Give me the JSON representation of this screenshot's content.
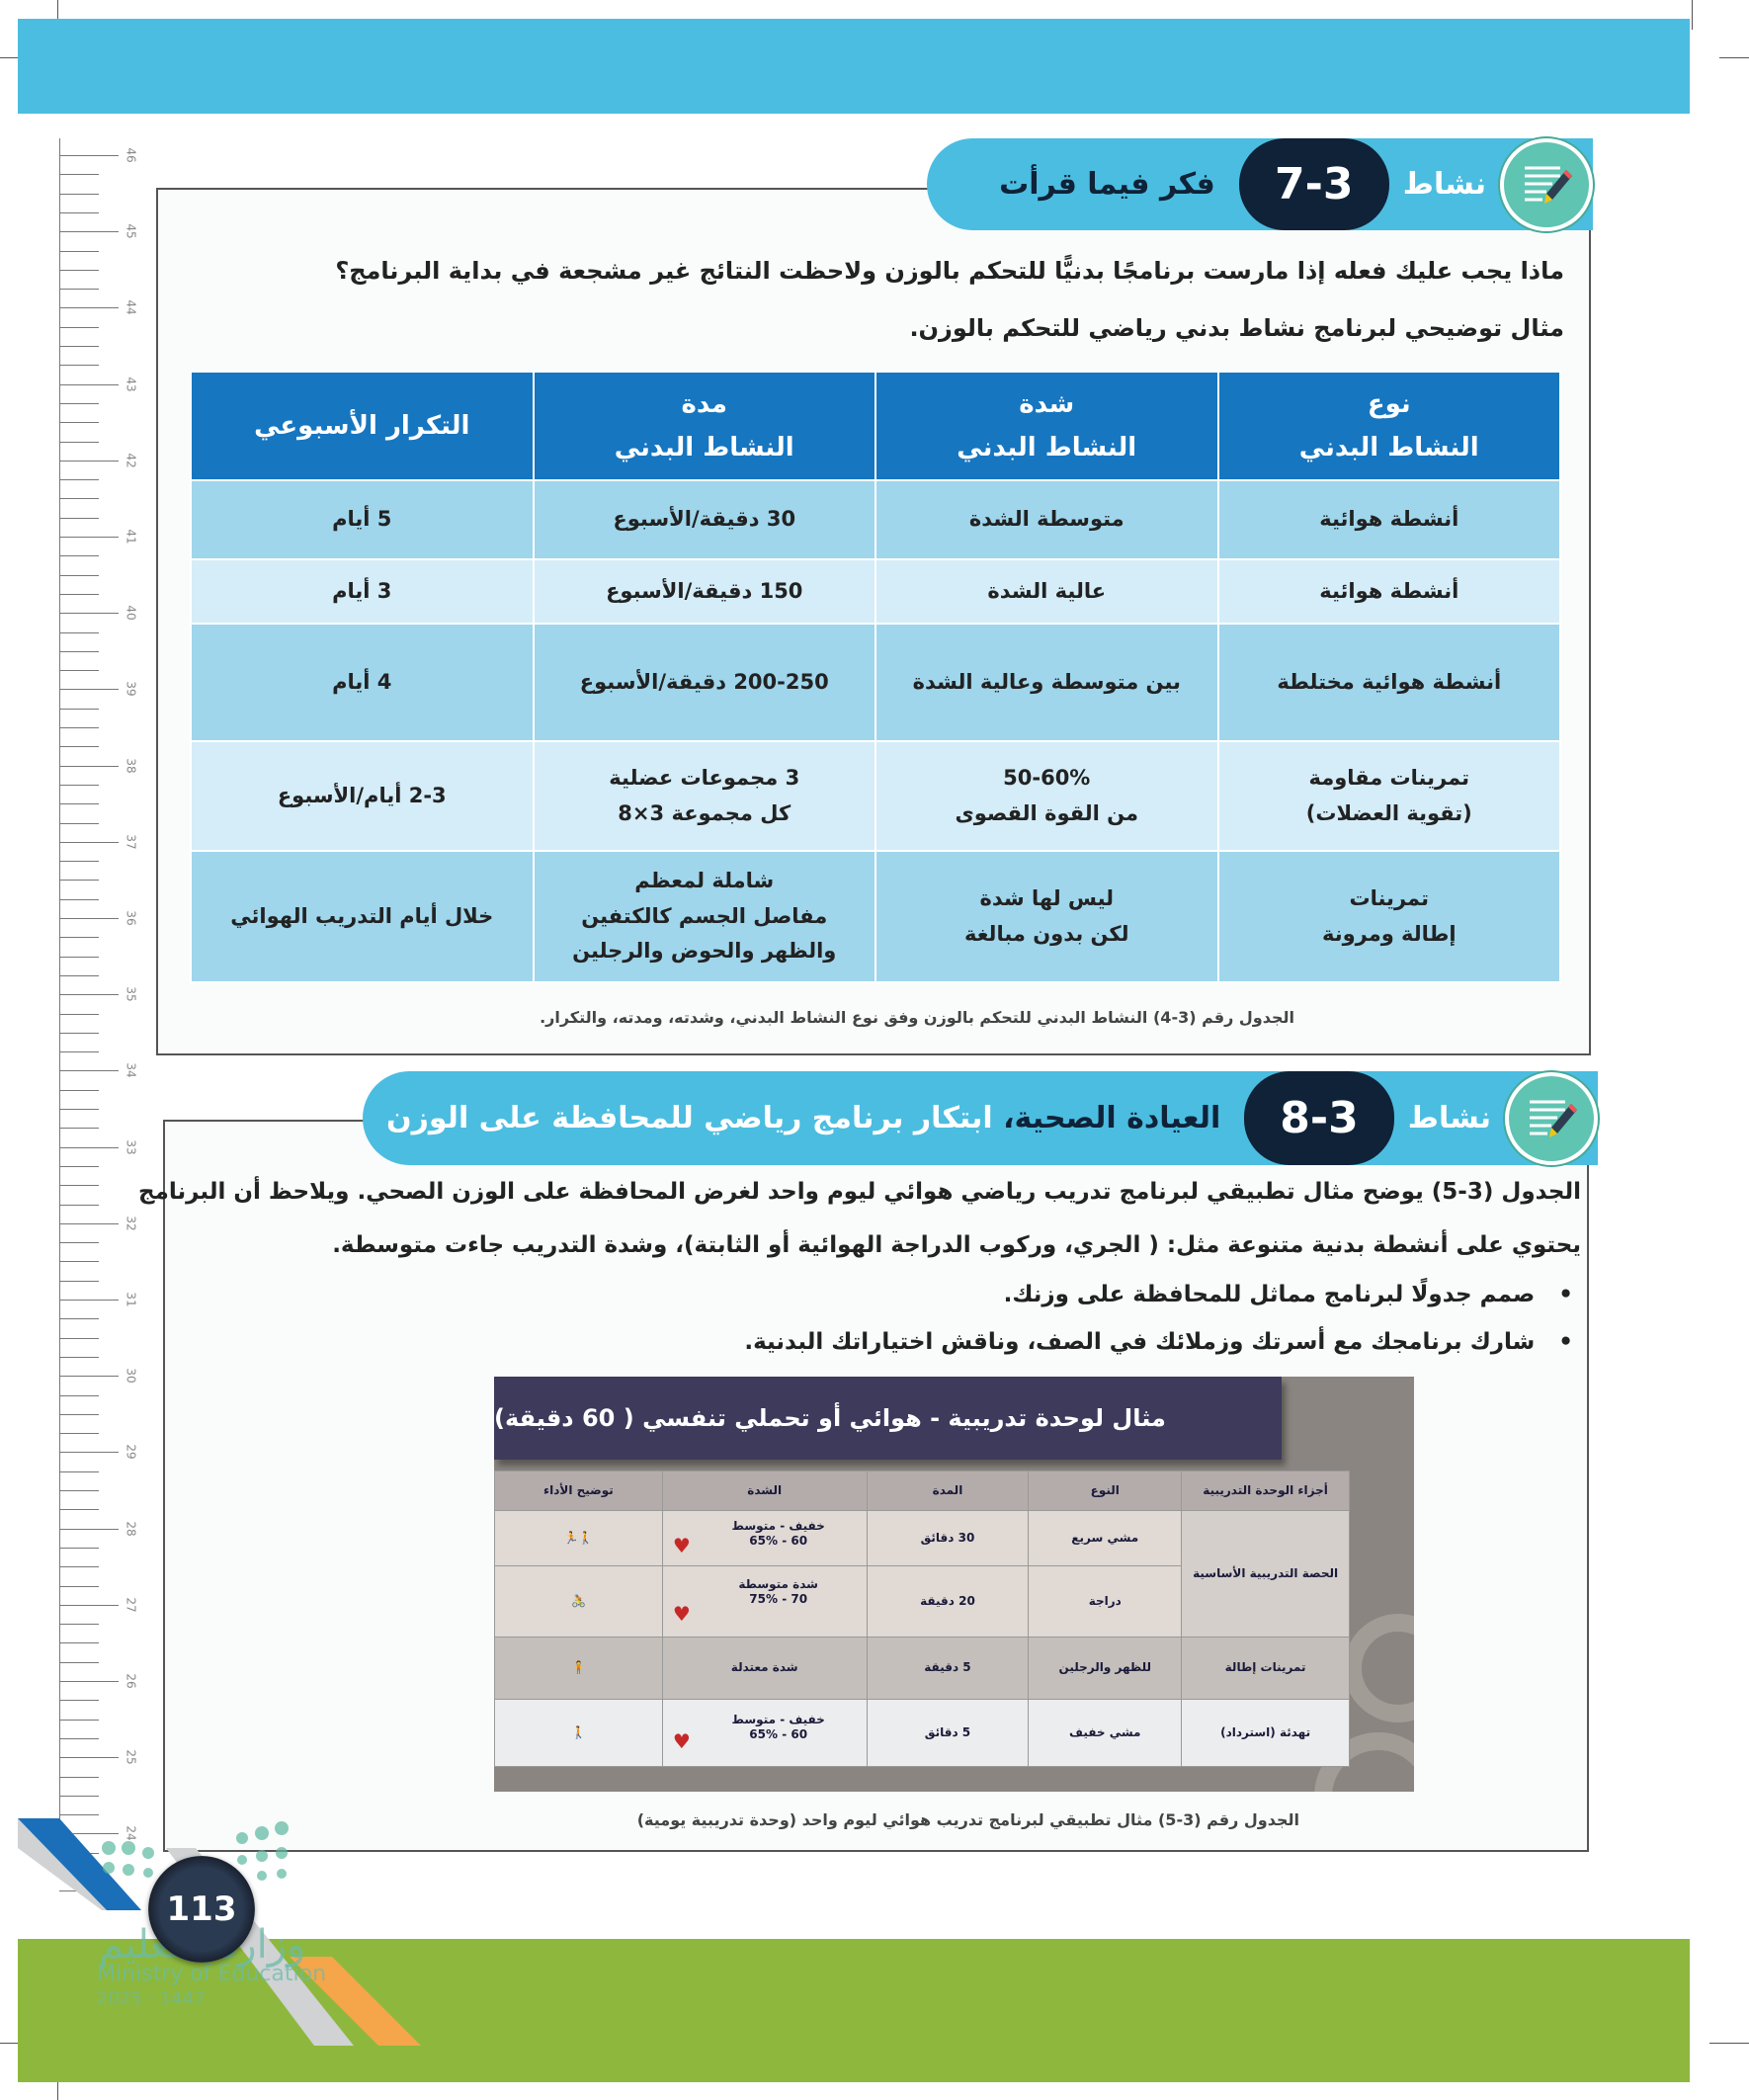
{
  "ruler": {
    "numbers": [
      "46",
      "45",
      "44",
      "43",
      "42",
      "41",
      "40",
      "39",
      "38",
      "37",
      "36",
      "35",
      "34",
      "33",
      "32",
      "31",
      "30",
      "29",
      "28",
      "27",
      "26",
      "25",
      "24"
    ]
  },
  "activity1": {
    "label": "نشاط",
    "number": "7-3",
    "title": "فكر فيما قرأت",
    "icon": "notepad-pencil-icon",
    "question": "ماذا يجب عليك فعله إذا مارست برنامجًا بدنيًّا للتحكم بالوزن ولاحظت النتائج غير مشجعة في بداية البرنامج؟",
    "intro": "مثال توضيحي لبرنامج نشاط بدني رياضي للتحكم بالوزن.",
    "table": {
      "headers": [
        {
          "line1": "نوع",
          "line2": "النشاط البدني"
        },
        {
          "line1": "شدة",
          "line2": "النشاط البدني"
        },
        {
          "line1": "مدة",
          "line2": "النشاط البدني"
        },
        {
          "line1": "التكرار الأسبوعي",
          "line2": ""
        }
      ],
      "rows": [
        [
          "أنشطة هوائية",
          "متوسطة الشدة",
          "30 دقيقة/الأسبوع",
          "5 أيام"
        ],
        [
          "أنشطة هوائية",
          "عالية الشدة",
          "150 دقيقة/الأسبوع",
          "3 أيام"
        ],
        [
          "أنشطة هوائية مختلطة",
          "بين متوسطة وعالية الشدة",
          "200-250 دقيقة/الأسبوع",
          "4 أيام"
        ],
        [
          "تمرينات مقاومة\n(تقوية العضلات)",
          "50-60%\nمن القوة القصوى",
          "3 مجموعات عضلية\nكل مجموعة 3×8",
          "2-3 أيام/الأسبوع"
        ],
        [
          "تمرينات\nإطالة ومرونة",
          "ليس لها شدة\nلكن بدون مبالغة",
          "شاملة لمعظم\nمفاصل الجسم كالكتفين\nوالظهر والحوض والرجلين",
          "خلال أيام التدريب الهوائي"
        ]
      ]
    },
    "caption": "الجدول رقم (3-4)  النشاط البدني للتحكم بالوزن وفق نوع النشاط البدني، وشدته، ومدته، والتكرار."
  },
  "activity2": {
    "label": "نشاط",
    "number": "8-3",
    "title_bold": "العيادة الصحية،",
    "title_rest": " ابتكار برنامج رياضي للمحافظة على الوزن",
    "icon": "notepad-pencil-icon",
    "paragraph_line1": "الجدول (3-5) يوضح مثال تطبيقي لبرنامج تدريب رياضي هوائي ليوم واحد لغرض المحافظة على الوزن الصحي. ويلاحظ أن البرنامج",
    "paragraph_line2": "يحتوي على أنشطة بدنية متنوعة مثل: ( الجري، وركوب الدراجة الهوائية أو الثابتة)، وشدة التدريب جاءت متوسطة.",
    "bullets": [
      "صمم جدولًا لبرنامج مماثل للمحافظة على وزنك.",
      "شارك برنامجك مع أسرتك وزملائك في الصف، وناقش اختياراتك البدنية."
    ],
    "figure": {
      "title": "مثال لوحدة تدريبية - هوائي أو تحملي تنفسي ( 60 دقيقة)",
      "headers": [
        "أجزاء الوحدة التدريبية",
        "النوع",
        "المدة",
        "الشدة",
        "توضيح الأداء"
      ],
      "main_part": "الحصة التدريبية الأساسية",
      "rows": [
        {
          "type": "مشي سريع",
          "duration": "30 دقائق",
          "intensity1": "خفيف - متوسط",
          "intensity2": "60 - 65%",
          "icon": "walk-run-icon",
          "heart": true
        },
        {
          "type": "دراجة",
          "duration": "20 دقيقة",
          "intensity1": "شدة متوسطة",
          "intensity2": "70 - 75%",
          "icon": "cycling-icon",
          "heart": true
        },
        {
          "part": "تمرينات إطالة",
          "type": "للظهر والرجلين",
          "duration": "5 دقيقة",
          "intensity1": "شدة معتدلة",
          "intensity2": "",
          "icon": "stretching-icon",
          "heart": false
        },
        {
          "part": "تهدئة (استرداد)",
          "type": "مشي خفيف",
          "duration": "5 دقائق",
          "intensity1": "خفيف - متوسط",
          "intensity2": "60 - 65%",
          "icon": "walking-icon",
          "heart": true
        }
      ]
    },
    "caption": "الجدول رقم (3-5)  مثال تطبيقي لبرنامج تدريب هوائي ليوم واحد (وحدة تدريبية يومية)"
  },
  "footer": {
    "page_number": "113",
    "logo_arabic": "وزارة التعليم",
    "logo_english": "Ministry of Education",
    "logo_year": "2025 - 1447"
  },
  "colors": {
    "cyan": "#4bbde0",
    "navy": "#0f2238",
    "table_header": "#1776c0",
    "row_dark": "#9fd6ec",
    "row_light": "#d4edf8",
    "green": "#8db83d",
    "orange": "#f5a54a",
    "blue": "#1a6fb8"
  }
}
